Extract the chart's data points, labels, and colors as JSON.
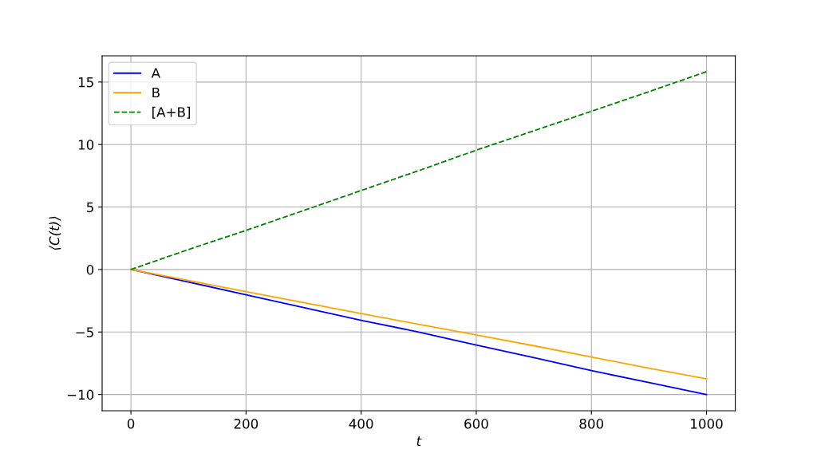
{
  "chart_data": {
    "type": "line",
    "xlabel": "t",
    "ylabel": "⟨C(t)⟩",
    "x": [
      0,
      100,
      200,
      300,
      400,
      500,
      600,
      700,
      800,
      900,
      1000
    ],
    "series": [
      {
        "name": "A",
        "color": "#0000ff",
        "line_style": "solid",
        "values": [
          0,
          -1.0,
          -2.02,
          -3.05,
          -4.07,
          -5.0,
          -6.04,
          -7.05,
          -8.09,
          -9.05,
          -10.0
        ]
      },
      {
        "name": "B",
        "color": "#ffa500",
        "line_style": "solid",
        "values": [
          0,
          -0.88,
          -1.77,
          -2.65,
          -3.53,
          -4.38,
          -5.23,
          -6.1,
          -7.0,
          -7.9,
          -8.75
        ]
      },
      {
        "name": "[A+B]",
        "color": "#008000",
        "line_style": "dashed",
        "values": [
          0,
          1.6,
          3.13,
          4.72,
          6.32,
          7.91,
          9.55,
          11.1,
          12.66,
          14.23,
          15.83
        ]
      }
    ],
    "xlim": [
      -50,
      1050
    ],
    "xticks": [
      0,
      200,
      400,
      600,
      800,
      1000
    ],
    "ylim": [
      -11.3,
      17.1
    ],
    "yticks": [
      {
        "value": -10,
        "label": "−10"
      },
      {
        "value": -5,
        "label": "−5"
      },
      0,
      5,
      10,
      15
    ],
    "grid": true,
    "legend": "top left",
    "marker": "none"
  }
}
